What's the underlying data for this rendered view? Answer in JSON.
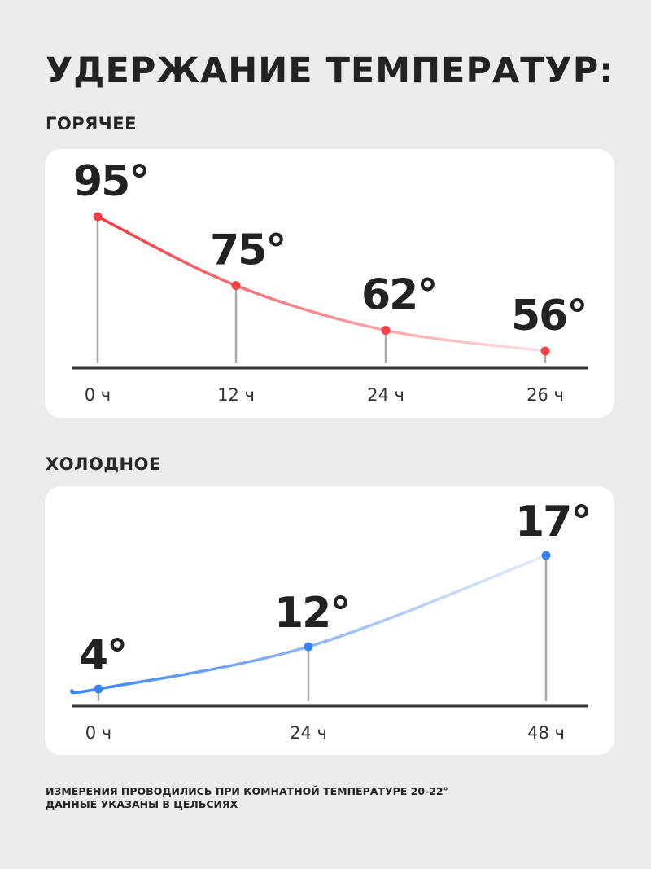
{
  "title": "УДЕРЖАНИЕ ТЕМПЕРАТУР:",
  "footnote": [
    "ИЗМЕРЕНИЯ ПРОВОДИЛИСЬ ПРИ КОМНАТНОЙ ТЕМПЕРАТУРЕ 20-22°",
    "ДАННЫЕ УКАЗАНЫ В ЦЕЛЬСИЯХ"
  ],
  "chart_data": [
    {
      "type": "line",
      "title": "ГОРЯЧЕЕ",
      "categories": [
        "0 ч",
        "12 ч",
        "24 ч",
        "26 ч"
      ],
      "x": [
        0,
        12,
        24,
        26
      ],
      "values": [
        95,
        75,
        62,
        56
      ],
      "data_labels": [
        "95°",
        "75°",
        "62°",
        "56°"
      ],
      "color": "#f5424a",
      "grid": false
    },
    {
      "type": "line",
      "title": "ХОЛОДНОЕ",
      "categories": [
        "0 ч",
        "24 ч",
        "48 ч"
      ],
      "x": [
        0,
        24,
        48
      ],
      "values": [
        4,
        12,
        17
      ],
      "data_labels": [
        "4°",
        "12°",
        "17°"
      ],
      "color": "#3b82f6",
      "grid": false
    }
  ]
}
